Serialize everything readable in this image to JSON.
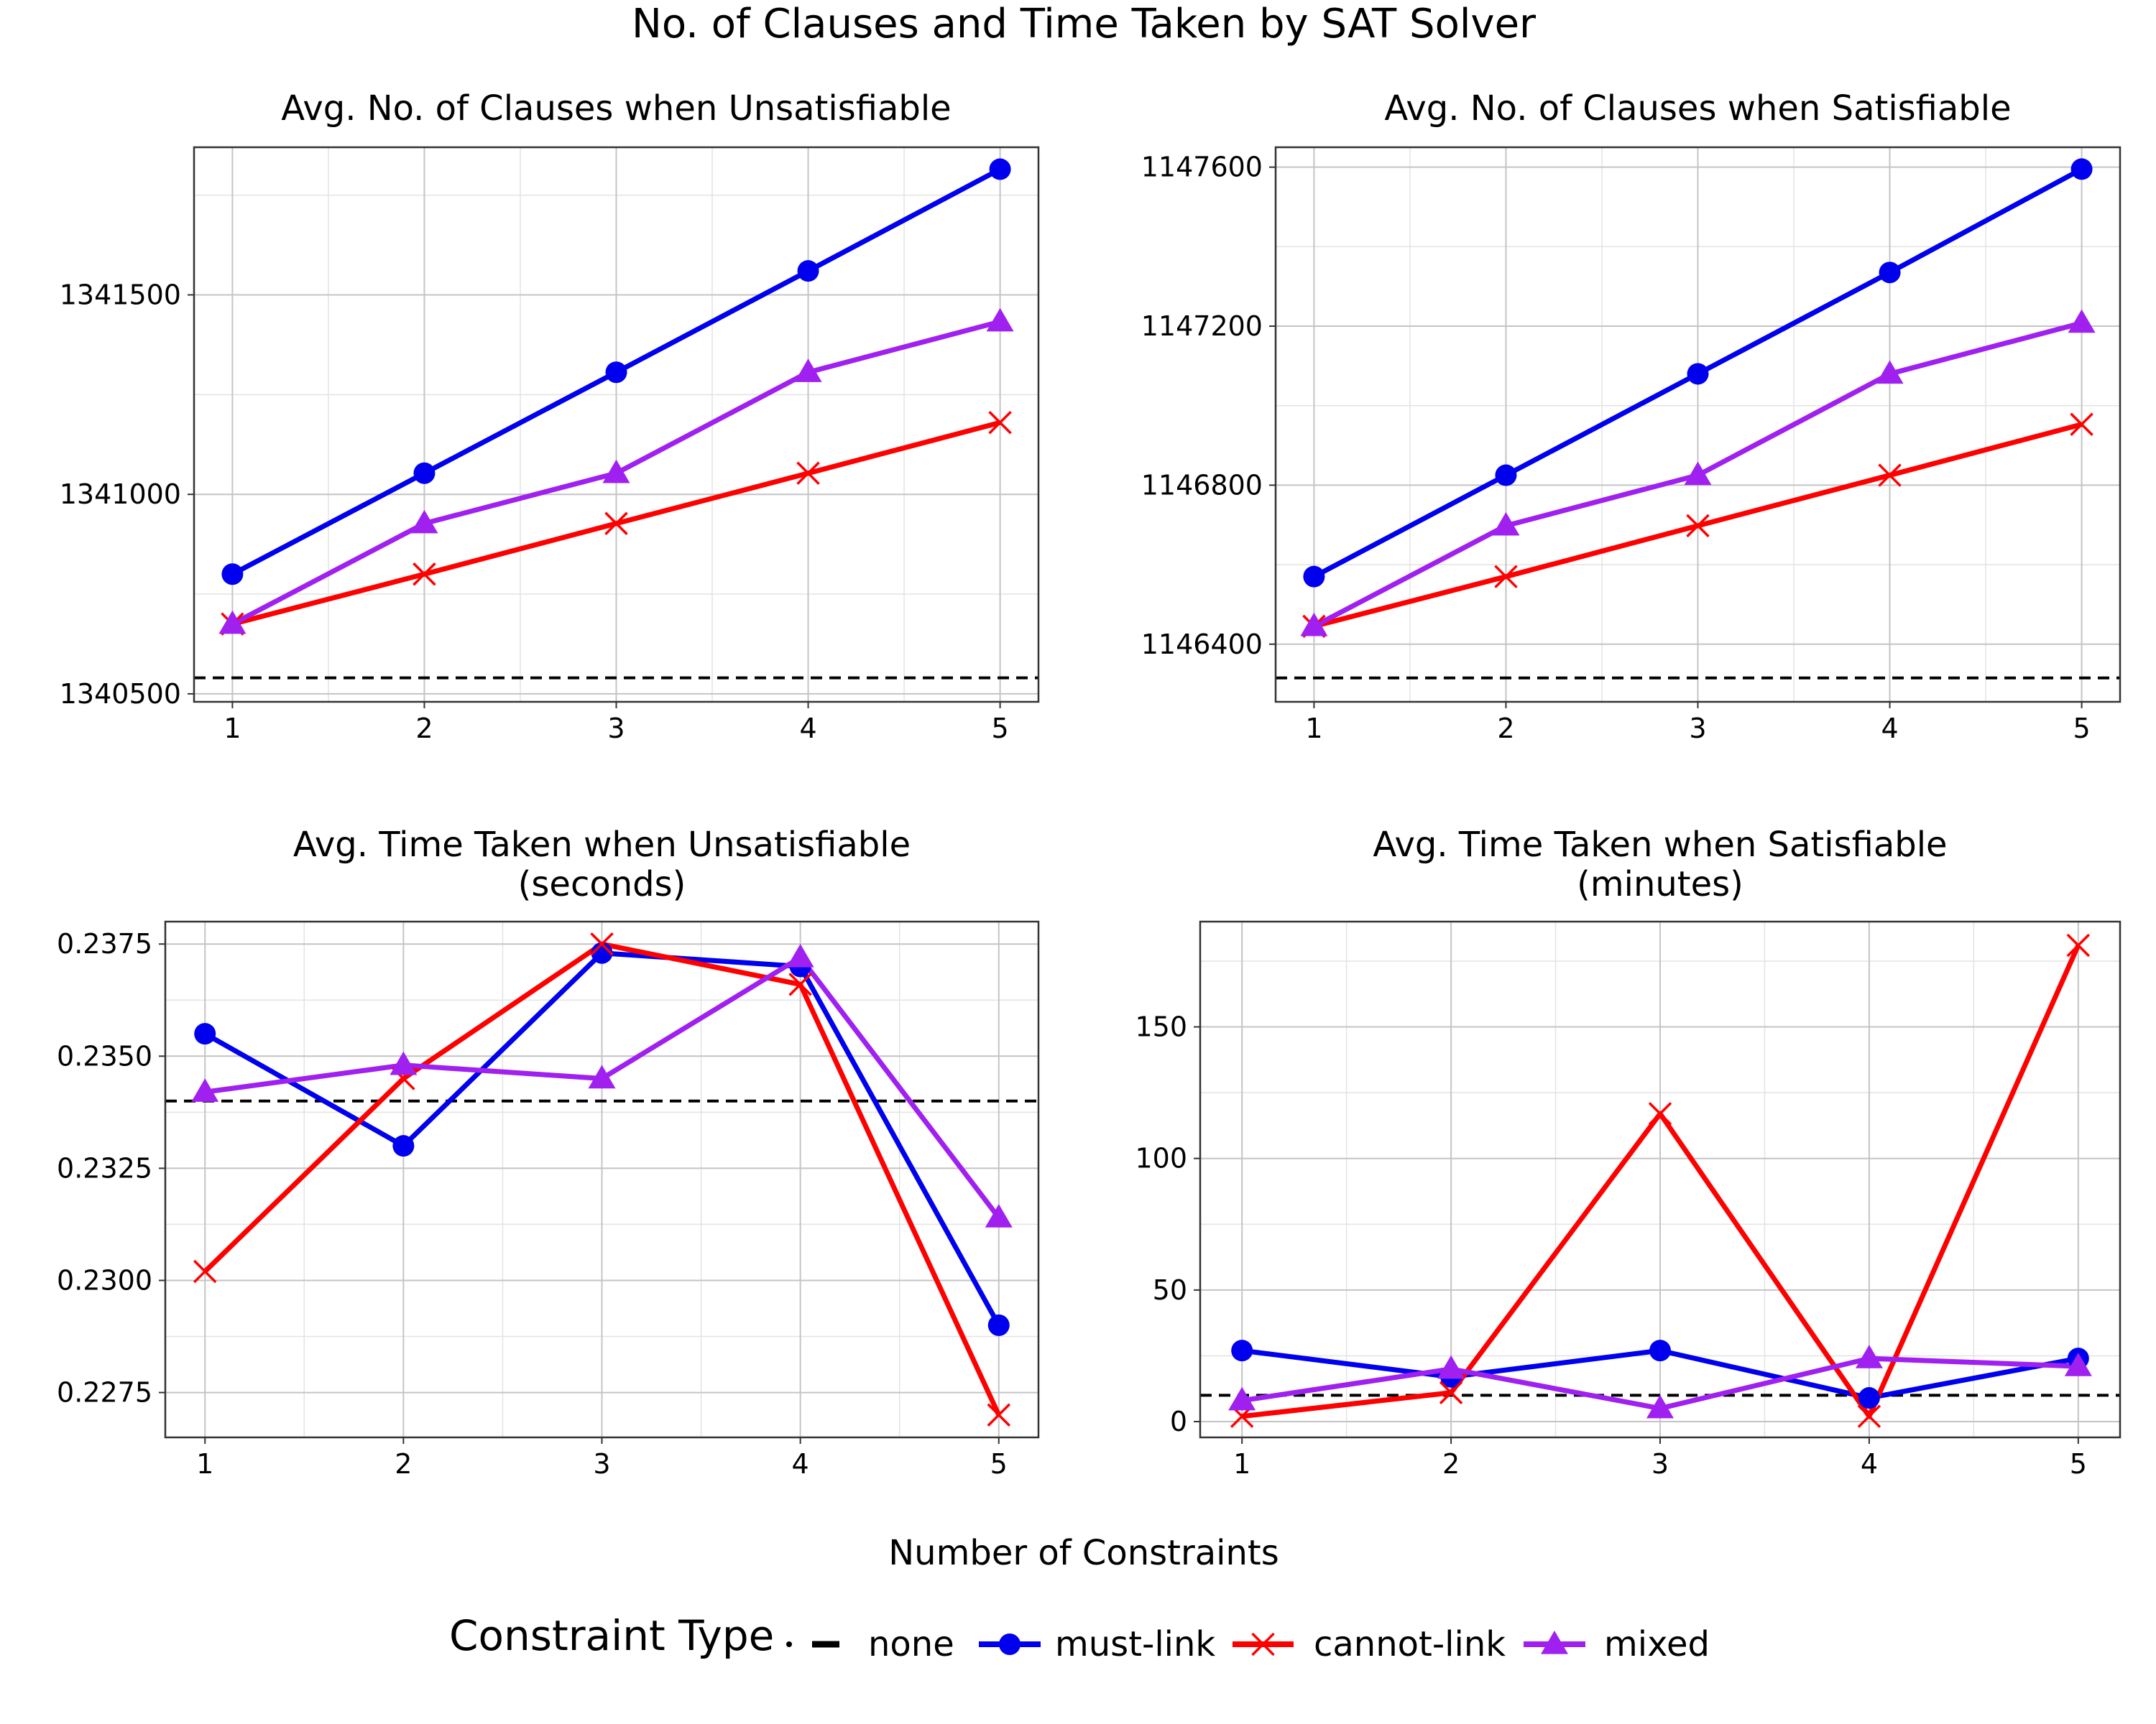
{
  "figure": {
    "title": "No. of Clauses and Time Taken by SAT Solver",
    "xlabel": "Number of Constraints",
    "legend": {
      "title": "Constraint Type",
      "items": [
        {
          "key": "none",
          "label": "none",
          "color": "#000000",
          "style": "dashed",
          "marker": "none"
        },
        {
          "key": "must",
          "label": "must-link",
          "color": "#0000ee",
          "style": "solid",
          "marker": "circle"
        },
        {
          "key": "cannot",
          "label": "cannot-link",
          "color": "#ff0000",
          "style": "solid",
          "marker": "x"
        },
        {
          "key": "mixed",
          "label": "mixed",
          "color": "#a020f0",
          "style": "solid",
          "marker": "triangle"
        }
      ]
    }
  },
  "chart_data": [
    {
      "type": "line",
      "title": [
        "Avg. No. of Clauses when Unsatisfiable"
      ],
      "x": [
        1,
        2,
        3,
        4,
        5
      ],
      "xlim": [
        0.8,
        5.2
      ],
      "ylim": [
        1340480,
        1341870
      ],
      "yticks": [
        1340500,
        1341000,
        1341500
      ],
      "ytick_labels": [
        "1340500",
        "1341000",
        "1341500"
      ],
      "minor_yticks": [
        1340750,
        1341250,
        1341750
      ],
      "none_baseline": 1340540,
      "series": [
        {
          "key": "must",
          "name": "must-link",
          "values": [
            1340800,
            1341053,
            1341306,
            1341560,
            1341815
          ]
        },
        {
          "key": "cannot",
          "name": "cannot-link",
          "values": [
            1340675,
            1340800,
            1340927,
            1341053,
            1341180
          ]
        },
        {
          "key": "mixed",
          "name": "mixed",
          "values": [
            1340675,
            1340927,
            1341053,
            1341306,
            1341433
          ]
        }
      ],
      "grid": true
    },
    {
      "type": "line",
      "title": [
        "Avg. No. of Clauses when Satisfiable"
      ],
      "x": [
        1,
        2,
        3,
        4,
        5
      ],
      "xlim": [
        0.8,
        5.2
      ],
      "ylim": [
        1146255,
        1147650
      ],
      "yticks": [
        1146400,
        1146800,
        1147200,
        1147600
      ],
      "ytick_labels": [
        "1146400",
        "1146800",
        "1147200",
        "1147600"
      ],
      "minor_yticks": [
        1146600,
        1147000,
        1147400
      ],
      "none_baseline": 1146315,
      "series": [
        {
          "key": "must",
          "name": "must-link",
          "values": [
            1146570,
            1146825,
            1147080,
            1147335,
            1147595
          ]
        },
        {
          "key": "cannot",
          "name": "cannot-link",
          "values": [
            1146445,
            1146570,
            1146698,
            1146825,
            1146953
          ]
        },
        {
          "key": "mixed",
          "name": "mixed",
          "values": [
            1146445,
            1146698,
            1146825,
            1147080,
            1147208
          ]
        }
      ],
      "grid": true
    },
    {
      "type": "line",
      "title": [
        "Avg. Time Taken when Unsatisfiable",
        "(seconds)"
      ],
      "x": [
        1,
        2,
        3,
        4,
        5
      ],
      "xlim": [
        0.8,
        5.2
      ],
      "ylim": [
        0.2265,
        0.238
      ],
      "yticks": [
        0.2275,
        0.23,
        0.2325,
        0.235,
        0.2375
      ],
      "ytick_labels": [
        "0.2275",
        "0.2300",
        "0.2325",
        "0.2350",
        "0.2375"
      ],
      "minor_yticks": [
        0.22875,
        0.23125,
        0.23375,
        0.23625
      ],
      "none_baseline": 0.234,
      "series": [
        {
          "key": "must",
          "name": "must-link",
          "values": [
            0.2355,
            0.233,
            0.2373,
            0.237,
            0.229
          ]
        },
        {
          "key": "cannot",
          "name": "cannot-link",
          "values": [
            0.2302,
            0.2345,
            0.2375,
            0.2366,
            0.227
          ]
        },
        {
          "key": "mixed",
          "name": "mixed",
          "values": [
            0.2342,
            0.2348,
            0.2345,
            0.2372,
            0.2314
          ]
        }
      ],
      "grid": true
    },
    {
      "type": "line",
      "title": [
        "Avg. Time Taken when Satisfiable",
        "(minutes)"
      ],
      "x": [
        1,
        2,
        3,
        4,
        5
      ],
      "xlim": [
        0.8,
        5.2
      ],
      "ylim": [
        -6,
        190
      ],
      "yticks": [
        0,
        50,
        100,
        150
      ],
      "ytick_labels": [
        "0",
        "50",
        "100",
        "150"
      ],
      "minor_yticks": [
        25,
        75,
        125,
        175
      ],
      "none_baseline": 10,
      "series": [
        {
          "key": "must",
          "name": "must-link",
          "values": [
            27,
            17,
            27,
            9,
            24
          ]
        },
        {
          "key": "cannot",
          "name": "cannot-link",
          "values": [
            2,
            11,
            117,
            2,
            181
          ]
        },
        {
          "key": "mixed",
          "name": "mixed",
          "values": [
            8,
            20,
            5,
            24,
            21
          ]
        }
      ],
      "grid": true
    }
  ]
}
